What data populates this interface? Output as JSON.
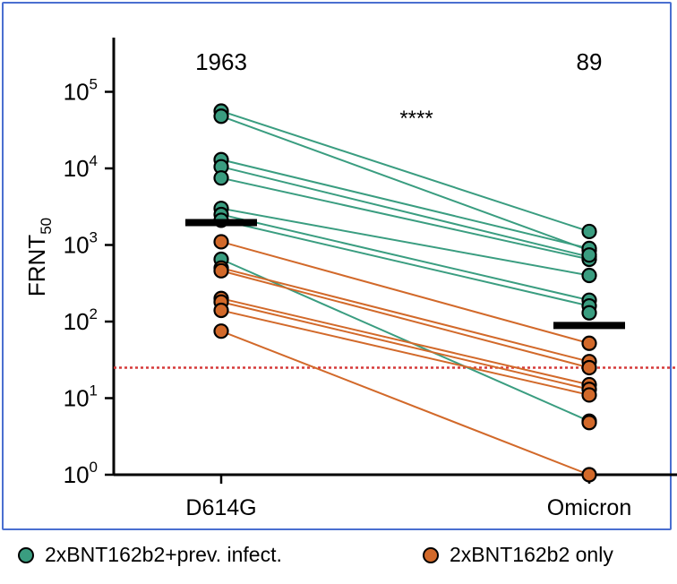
{
  "chart_data": {
    "type": "scatter",
    "ylabel": "FRNT",
    "ylabel_sub": "50",
    "yscale": "log",
    "ylim": [
      1,
      500000
    ],
    "yticks": [
      {
        "value": 1,
        "base": "10",
        "exp": "0"
      },
      {
        "value": 10,
        "base": "10",
        "exp": "1"
      },
      {
        "value": 100,
        "base": "10",
        "exp": "2"
      },
      {
        "value": 1000,
        "base": "10",
        "exp": "3"
      },
      {
        "value": 10000,
        "base": "10",
        "exp": "4"
      },
      {
        "value": 100000,
        "base": "10",
        "exp": "5"
      }
    ],
    "categories": [
      "D614G",
      "Omicron"
    ],
    "medians": [
      1963,
      89
    ],
    "median_labels": [
      "1963",
      "89"
    ],
    "significance": "****",
    "threshold": 25,
    "series": [
      {
        "name": "2xBNT162b2+prev. infect.",
        "color": "#3a9d80",
        "pairs": [
          [
            56000,
            1500
          ],
          [
            48000,
            850
          ],
          [
            13000,
            900
          ],
          [
            10500,
            700
          ],
          [
            7500,
            650
          ],
          [
            3000,
            400
          ],
          [
            2500,
            190
          ],
          [
            2100,
            160
          ],
          [
            650,
            5
          ]
        ]
      },
      {
        "name": "2xBNT162b2 only",
        "color": "#d2692a",
        "pairs": [
          [
            1100,
            52
          ],
          [
            500,
            30
          ],
          [
            460,
            25
          ],
          [
            200,
            15
          ],
          [
            180,
            13
          ],
          [
            140,
            11
          ],
          [
            75,
            1
          ]
        ]
      }
    ],
    "extra_points_omicron": [
      {
        "series": 0,
        "value": 130
      },
      {
        "series": 0,
        "value": 740
      },
      {
        "series": 1,
        "value": 4.8
      }
    ]
  },
  "legend": [
    {
      "label": "2xBNT162b2+prev. infect.",
      "color": "#3a9d80"
    },
    {
      "label": "2xBNT162b2 only",
      "color": "#d2692a"
    }
  ]
}
